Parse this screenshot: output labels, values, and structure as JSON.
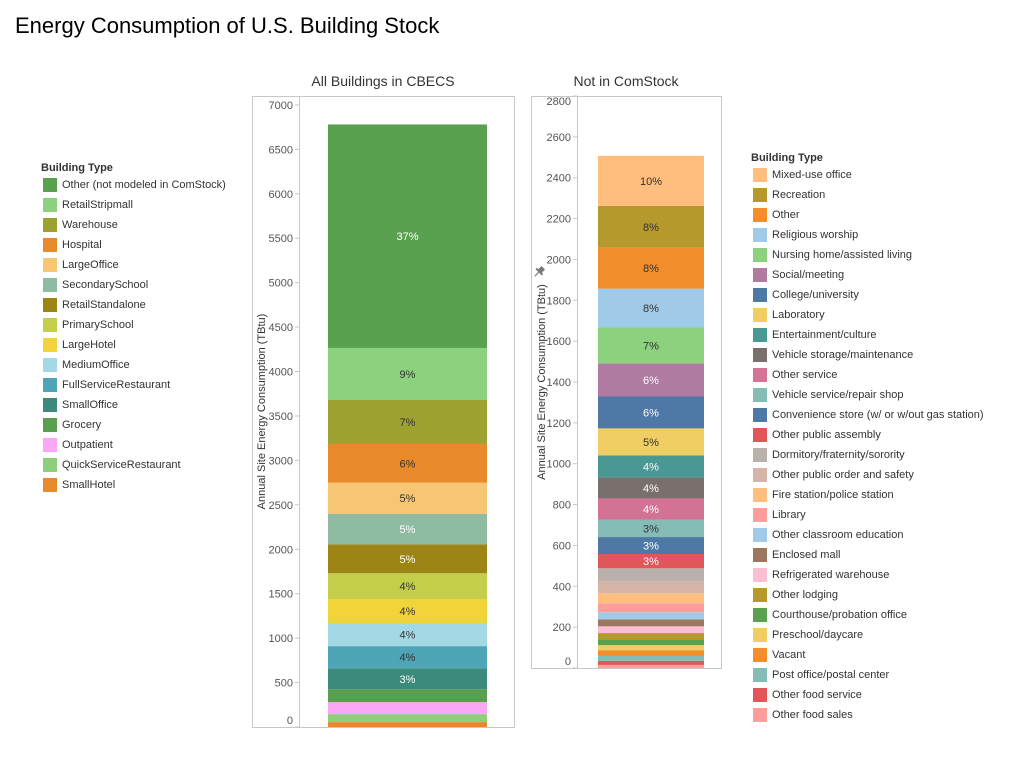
{
  "title": "Energy Consumption of U.S. Building Stock",
  "icons": {
    "axis_pin": "pin-icon"
  },
  "chart_data": [
    {
      "type": "bar",
      "stacked": true,
      "title": "All Buildings in CBECS",
      "ylabel": "Annual Site Energy Consumption (TBtu)",
      "ylim": [
        0,
        7100
      ],
      "yticks": [
        0,
        500,
        1000,
        1500,
        2000,
        2500,
        3000,
        3500,
        4000,
        4500,
        5000,
        5500,
        6000,
        6500,
        7000
      ],
      "grid": false,
      "legend_title": "Building Type",
      "legend_position": "left",
      "series": [
        {
          "name": "Other (not modeled in ComStock)",
          "values": [
            2515
          ],
          "color": "#59a14f",
          "label": "37%",
          "label_color": "#ffffff"
        },
        {
          "name": "RetailStripmall",
          "values": [
            585
          ],
          "color": "#8cd17d",
          "label": "9%",
          "label_color": "#333333"
        },
        {
          "name": "Warehouse",
          "values": [
            495
          ],
          "color": "#9da130",
          "label": "7%",
          "label_color": "#333333"
        },
        {
          "name": "Hospital",
          "values": [
            435
          ],
          "color": "#e8892b",
          "label": "6%",
          "label_color": "#333333"
        },
        {
          "name": "LargeOffice",
          "values": [
            350
          ],
          "color": "#f6c672",
          "label": "5%",
          "label_color": "#333333"
        },
        {
          "name": "SecondarySchool",
          "values": [
            345
          ],
          "color": "#8fbba3",
          "label": "5%",
          "label_color": "#ffffff"
        },
        {
          "name": "RetailStandalone",
          "values": [
            325
          ],
          "color": "#9c8415",
          "label": "5%",
          "label_color": "#ffffff"
        },
        {
          "name": "PrimarySchool",
          "values": [
            290
          ],
          "color": "#c3cf4b",
          "label": "4%",
          "label_color": "#333333"
        },
        {
          "name": "LargeHotel",
          "values": [
            270
          ],
          "color": "#f1d43a",
          "label": "4%",
          "label_color": "#333333"
        },
        {
          "name": "MediumOffice",
          "values": [
            260
          ],
          "color": "#a3d8e5",
          "label": "4%",
          "label_color": "#333333"
        },
        {
          "name": "FullServiceRestaurant",
          "values": [
            250
          ],
          "color": "#4ea5b8",
          "label": "4%",
          "label_color": "#333333"
        },
        {
          "name": "SmallOffice",
          "values": [
            235
          ],
          "color": "#3b8a7b",
          "label": "3%",
          "label_color": "#ffffff"
        },
        {
          "name": "Grocery",
          "values": [
            145
          ],
          "color": "#5a9e50"
        },
        {
          "name": "Outpatient",
          "values": [
            135
          ],
          "color": "#fba7f5"
        },
        {
          "name": "QuickServiceRestaurant",
          "values": [
            90
          ],
          "color": "#8dcf7d"
        },
        {
          "name": "SmallHotel",
          "values": [
            55
          ],
          "color": "#e8892b"
        }
      ]
    },
    {
      "type": "bar",
      "stacked": true,
      "title": "Not in ComStock",
      "ylabel": "Annual Site Energy Consumption (TBtu)",
      "ylim": [
        0,
        2800
      ],
      "yticks": [
        0,
        200,
        400,
        600,
        800,
        1000,
        1200,
        1400,
        1600,
        1800,
        2000,
        2200,
        2400,
        2600,
        2800
      ],
      "grid": false,
      "legend_title": "Building Type",
      "legend_position": "right",
      "series": [
        {
          "name": "Mixed-use office",
          "values": [
            245
          ],
          "color": "#ffbe7d",
          "label": "10%",
          "label_color": "#333333"
        },
        {
          "name": "Recreation",
          "values": [
            205
          ],
          "color": "#b6992d",
          "label": "8%",
          "label_color": "#333333"
        },
        {
          "name": "Other",
          "values": [
            200
          ],
          "color": "#f28e2b",
          "label": "8%",
          "label_color": "#333333"
        },
        {
          "name": "Religious worship",
          "values": [
            190
          ],
          "color": "#a0cbe8",
          "label": "8%",
          "label_color": "#333333"
        },
        {
          "name": "Nursing home/assisted living",
          "values": [
            176
          ],
          "color": "#8cd17d",
          "label": "7%",
          "label_color": "#333333"
        },
        {
          "name": "Social/meeting",
          "values": [
            162
          ],
          "color": "#b07aa1",
          "label": "6%",
          "label_color": "#ffffff"
        },
        {
          "name": "College/university",
          "values": [
            156
          ],
          "color": "#4e79a7",
          "label": "6%",
          "label_color": "#ffffff"
        },
        {
          "name": "Laboratory",
          "values": [
            132
          ],
          "color": "#f1ce63",
          "label": "5%",
          "label_color": "#333333"
        },
        {
          "name": "Entertainment/culture",
          "values": [
            108
          ],
          "color": "#499894",
          "label": "4%",
          "label_color": "#ffffff"
        },
        {
          "name": "Vehicle storage/maintenance",
          "values": [
            103
          ],
          "color": "#79706e",
          "label": "4%",
          "label_color": "#ffffff"
        },
        {
          "name": "Other service",
          "values": [
            103
          ],
          "color": "#d37295",
          "label": "4%",
          "label_color": "#ffffff"
        },
        {
          "name": "Vehicle service/repair shop",
          "values": [
            86
          ],
          "color": "#86bcb6",
          "label": "3%",
          "label_color": "#333333"
        },
        {
          "name": "Convenience store (w/ or w/out gas station)",
          "values": [
            83
          ],
          "color": "#4e79a7",
          "label": "3%",
          "label_color": "#ffffff"
        },
        {
          "name": "Other public assembly",
          "values": [
            70
          ],
          "color": "#e15759",
          "label": "3%",
          "label_color": "#ffffff"
        },
        {
          "name": "Dormitory/fraternity/sorority",
          "values": [
            64
          ],
          "color": "#bab0ac"
        },
        {
          "name": "Other public order and safety",
          "values": [
            58
          ],
          "color": "#d7b5a6"
        },
        {
          "name": "Fire station/police station",
          "values": [
            49
          ],
          "color": "#ffbe7d"
        },
        {
          "name": "Library",
          "values": [
            44
          ],
          "color": "#ff9d9a"
        },
        {
          "name": "Other classroom education",
          "values": [
            35
          ],
          "color": "#a0cbe8"
        },
        {
          "name": "Enclosed mall",
          "values": [
            34
          ],
          "color": "#9d7660"
        },
        {
          "name": "Refrigerated warehouse",
          "values": [
            33
          ],
          "color": "#fabfd2"
        },
        {
          "name": "Other lodging",
          "values": [
            30
          ],
          "color": "#b6992d"
        },
        {
          "name": "Courthouse/probation office",
          "values": [
            29
          ],
          "color": "#59a14f"
        },
        {
          "name": "Preschool/daycare",
          "values": [
            25
          ],
          "color": "#f1ce63"
        },
        {
          "name": "Vacant",
          "values": [
            28
          ],
          "color": "#f28e2b"
        },
        {
          "name": "Post office/postal center",
          "values": [
            24
          ],
          "color": "#86bcb6"
        },
        {
          "name": "Other food service",
          "values": [
            20
          ],
          "color": "#e15759"
        },
        {
          "name": "Other food sales",
          "values": [
            15
          ],
          "color": "#ff9d9a"
        }
      ]
    }
  ]
}
